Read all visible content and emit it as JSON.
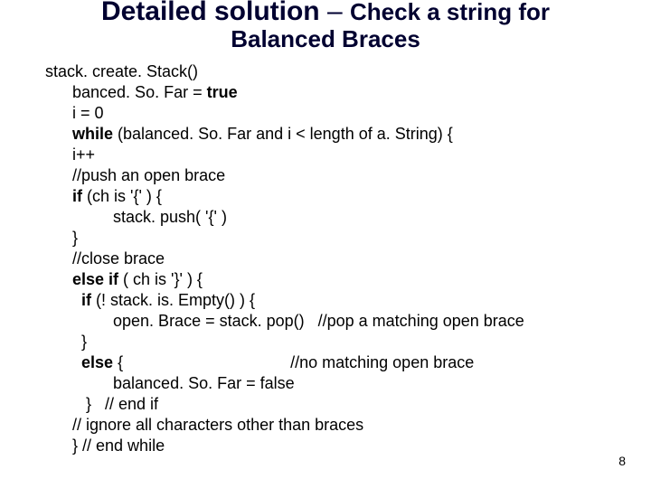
{
  "title": {
    "line1a": "Detailed solution",
    "dash": " – ",
    "line1b": "Check a string for",
    "line2": "Balanced Braces"
  },
  "code": {
    "l01": "stack. create. Stack()",
    "l02": "      banced. So. Far = ",
    "l02b": "true",
    "l03": "      i = 0",
    "l04a": "      ",
    "l04b": "while",
    "l04c": " (balanced. So. Far and i < length of a. String) {",
    "l05": "      i++",
    "l06": "      //push an open brace",
    "l07a": "      ",
    "l07b": "if",
    "l07c": " (ch is '{' ) {",
    "l08": "               stack. push( '{' )",
    "l09": "      }",
    "l10": "      //close brace",
    "l11a": "      ",
    "l11b": "else if",
    "l11c": " ( ch is '}' ) {",
    "l12a": "        ",
    "l12b": "if",
    "l12c": " (! stack. is. Empty() ) {",
    "l13": "               open. Brace = stack. pop()   //pop a matching open brace",
    "l14": "        }",
    "l15a": "        ",
    "l15b": "else",
    "l15c": " {                                     //no matching open brace",
    "l16": "               balanced. So. Far = false",
    "l17": "         }   // end if",
    "l18": "      // ignore all characters other than braces",
    "l19": "      } // end while"
  },
  "pagenum": "8"
}
